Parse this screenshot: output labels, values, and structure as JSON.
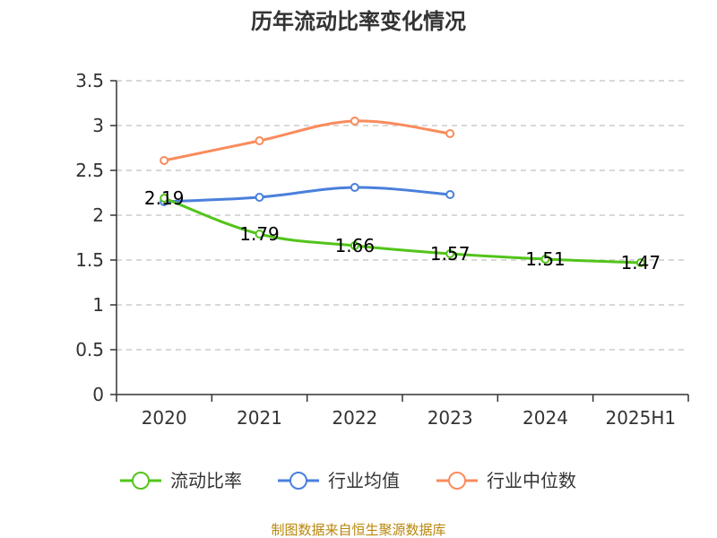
{
  "chart_data": {
    "type": "line",
    "title": "历年流动比率变化情况",
    "categories": [
      "2020",
      "2021",
      "2022",
      "2023",
      "2024",
      "2025H1"
    ],
    "ylim": [
      0,
      3.5
    ],
    "yticks": [
      "0",
      "0.5",
      "1",
      "1.5",
      "2",
      "2.5",
      "3",
      "3.5"
    ],
    "grid": true,
    "legend_position": "bottom",
    "series": [
      {
        "name": "流动比率",
        "color": "#52c41a",
        "values": [
          2.19,
          1.79,
          1.66,
          1.57,
          1.51,
          1.47
        ],
        "labels": [
          "2.19",
          "1.79",
          "1.66",
          "1.57",
          "1.51",
          "1.47"
        ]
      },
      {
        "name": "行业均值",
        "color": "#4a7fdc",
        "values": [
          2.15,
          2.2,
          2.31,
          2.23,
          null,
          null
        ]
      },
      {
        "name": "行业中位数",
        "color": "#f98b5b",
        "values": [
          2.61,
          2.83,
          3.05,
          2.91,
          null,
          null
        ]
      }
    ]
  },
  "footer": "制图数据来自恒生聚源数据库"
}
